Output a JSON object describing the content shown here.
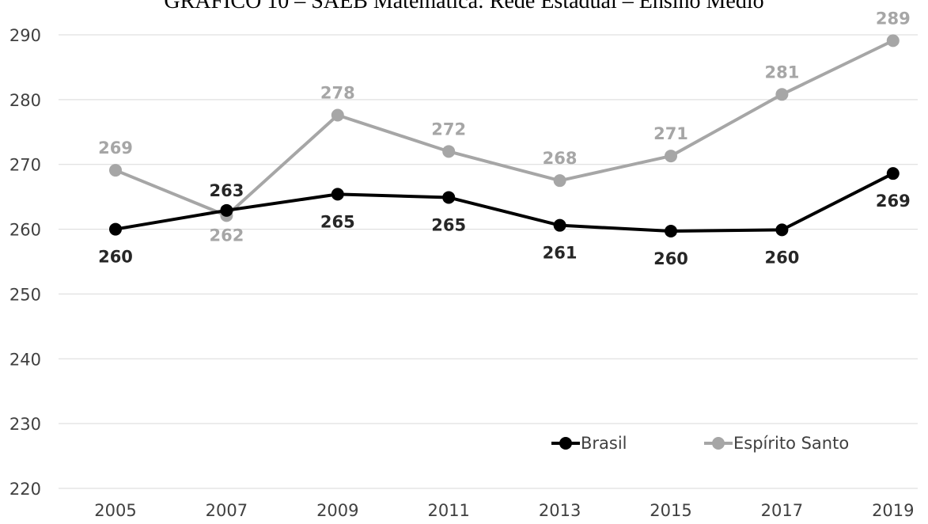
{
  "chart_data": {
    "type": "line",
    "title": "GRÁFICO 10 – SAEB Matemática: Rede Estadual – Ensino Médio",
    "categories": [
      "2005",
      "2007",
      "2009",
      "2011",
      "2013",
      "2015",
      "2017",
      "2019"
    ],
    "ylim": [
      220,
      290
    ],
    "yticks": [
      220,
      230,
      240,
      250,
      260,
      270,
      280,
      290
    ],
    "grid": true,
    "legend_position": "bottom-right",
    "series": [
      {
        "name": "Brasil",
        "color": "#000000",
        "values": [
          260.0,
          262.9,
          265.4,
          264.9,
          260.6,
          259.7,
          259.9,
          268.6
        ],
        "labels": [
          "260",
          "263",
          "265",
          "265",
          "261",
          "260",
          "260",
          "269"
        ]
      },
      {
        "name": "Espírito Santo",
        "color": "#a6a6a6",
        "values": [
          269.1,
          262.1,
          277.6,
          272.0,
          267.5,
          271.3,
          280.8,
          289.1
        ],
        "labels": [
          "269",
          "262",
          "278",
          "272",
          "268",
          "271",
          "281",
          "289"
        ]
      }
    ]
  }
}
